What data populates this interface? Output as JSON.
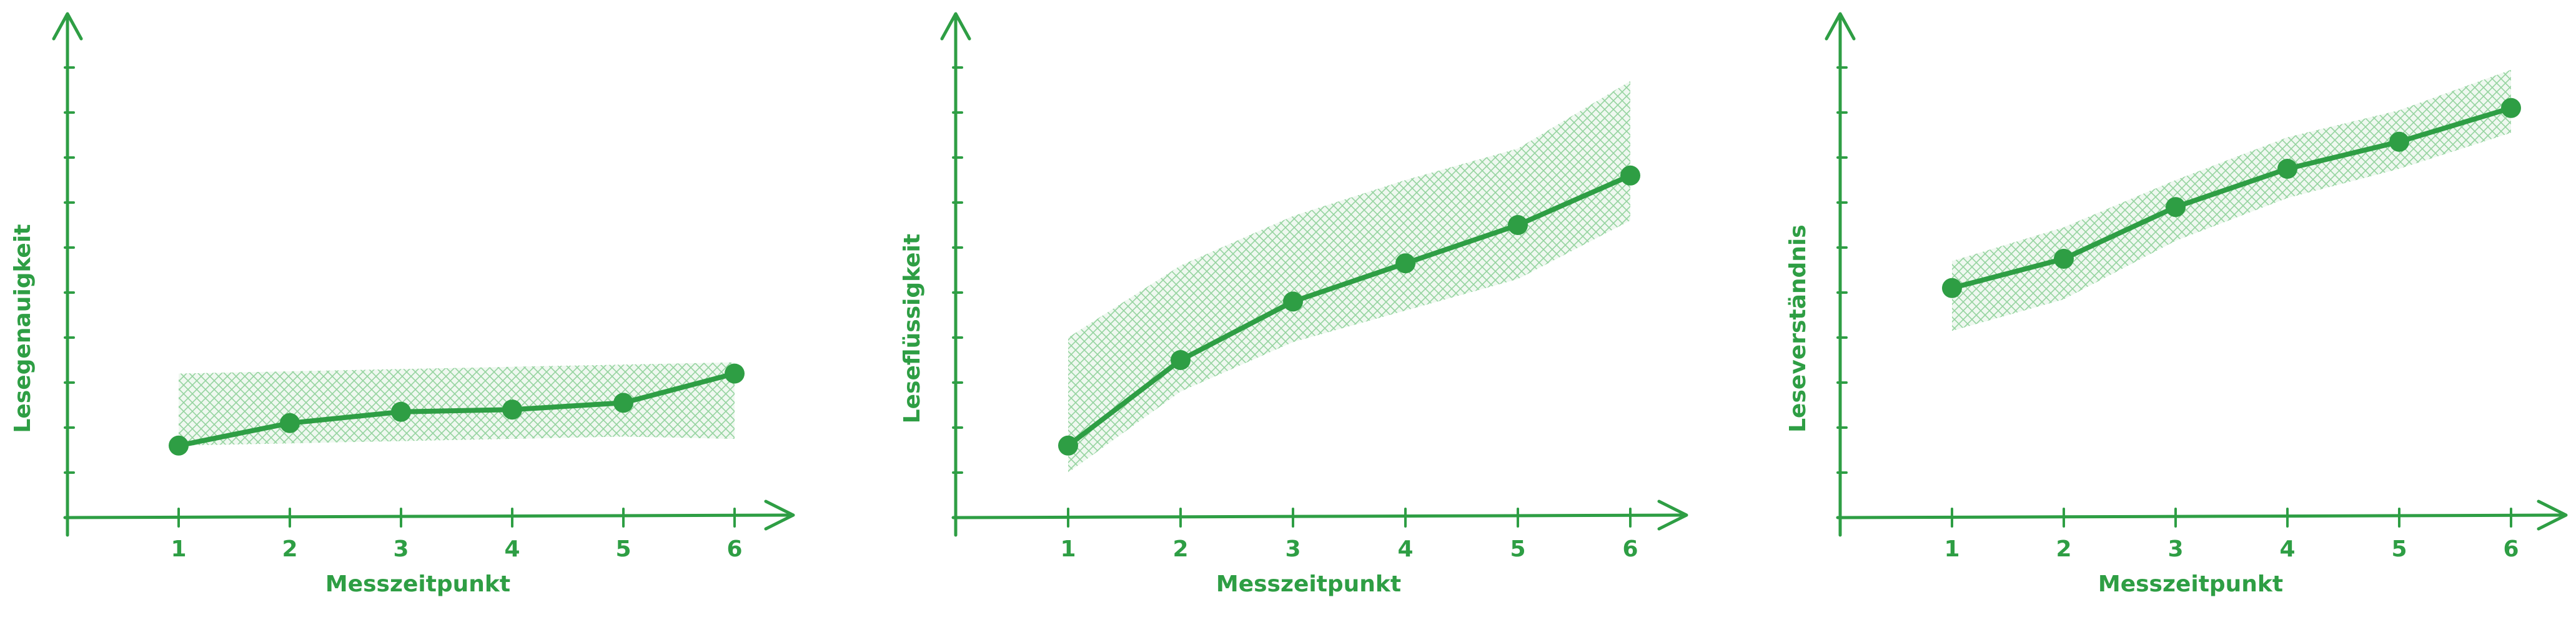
{
  "colors": {
    "accent": "#2e9e44",
    "band": "#8fd19a"
  },
  "chart_data": [
    {
      "type": "line",
      "title": "",
      "xlabel": "Messzeitpunkt",
      "ylabel": "Lesegenauigkeit",
      "x": [
        1,
        2,
        3,
        4,
        5,
        6
      ],
      "series": [
        {
          "values": [
            1.6,
            2.1,
            2.35,
            2.4,
            2.55,
            3.2
          ]
        }
      ],
      "band": {
        "lower": [
          1.6,
          1.65,
          1.7,
          1.75,
          1.8,
          1.75
        ],
        "upper": [
          3.2,
          3.25,
          3.3,
          3.35,
          3.4,
          3.45
        ]
      },
      "xlim": [
        0,
        6.5
      ],
      "ylim": [
        0,
        10.5
      ],
      "y_ticks": 10,
      "grid": false,
      "legend": "none"
    },
    {
      "type": "line",
      "title": "",
      "xlabel": "Messzeitpunkt",
      "ylabel": "Leseflüssigkeit",
      "x": [
        1,
        2,
        3,
        4,
        5,
        6
      ],
      "series": [
        {
          "values": [
            1.6,
            3.5,
            4.8,
            5.65,
            6.5,
            7.6
          ]
        }
      ],
      "band": {
        "lower": [
          1.0,
          2.8,
          3.9,
          4.6,
          5.3,
          6.6
        ],
        "upper": [
          4.0,
          5.6,
          6.7,
          7.5,
          8.2,
          9.7
        ]
      },
      "xlim": [
        0,
        6.5
      ],
      "ylim": [
        0,
        10.5
      ],
      "y_ticks": 10,
      "grid": false,
      "legend": "none"
    },
    {
      "type": "line",
      "title": "",
      "xlabel": "Messzeitpunkt",
      "ylabel": "Leseverständnis",
      "x": [
        1,
        2,
        3,
        4,
        5,
        6
      ],
      "series": [
        {
          "values": [
            5.1,
            5.75,
            6.9,
            7.75,
            8.35,
            9.1
          ]
        }
      ],
      "band": {
        "lower": [
          4.15,
          4.85,
          6.15,
          7.1,
          7.75,
          8.55
        ],
        "upper": [
          5.7,
          6.45,
          7.5,
          8.45,
          9.05,
          9.95
        ]
      },
      "xlim": [
        0,
        6.5
      ],
      "ylim": [
        0,
        10.5
      ],
      "y_ticks": 10,
      "grid": false,
      "legend": "none"
    }
  ]
}
